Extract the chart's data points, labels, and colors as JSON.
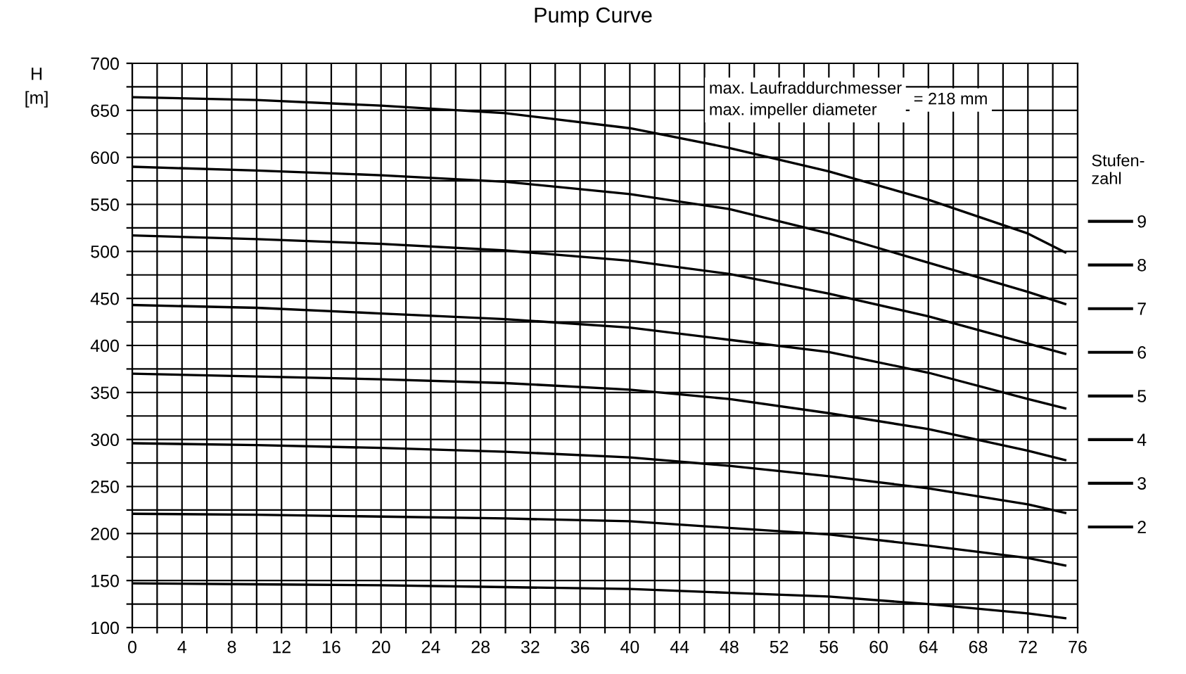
{
  "chart_data": {
    "type": "line",
    "title": "Pump Curve",
    "ylabel": "H\n[m]",
    "legend_title": "Stufen-\nzahl",
    "annotations": [
      "max. Laufraddurchmesser\nmax. impeller diameter",
      "= 218 mm"
    ],
    "x": [
      0,
      10,
      20,
      30,
      40,
      48,
      56,
      64,
      72,
      75
    ],
    "series": [
      {
        "name": "9",
        "color": "#000000",
        "values": [
          664,
          661,
          655,
          647,
          631,
          610,
          585,
          555,
          519,
          499
        ]
      },
      {
        "name": "8",
        "color": "#000000",
        "values": [
          590,
          586,
          581,
          574,
          561,
          545,
          519,
          488,
          457,
          444
        ]
      },
      {
        "name": "7",
        "color": "#000000",
        "values": [
          517,
          513,
          508,
          501,
          490,
          476,
          455,
          431,
          402,
          391
        ]
      },
      {
        "name": "6",
        "color": "#000000",
        "values": [
          443,
          440,
          434,
          428,
          419,
          406,
          393,
          371,
          343,
          333
        ]
      },
      {
        "name": "5",
        "color": "#000000",
        "values": [
          370,
          367,
          364,
          360,
          353,
          343,
          328,
          311,
          288,
          278
        ]
      },
      {
        "name": "4",
        "color": "#000000",
        "values": [
          296,
          294,
          291,
          287,
          281,
          272,
          261,
          248,
          231,
          222
        ]
      },
      {
        "name": "3",
        "color": "#000000",
        "values": [
          221,
          220,
          218,
          216,
          213,
          206,
          199,
          187,
          174,
          166
        ]
      },
      {
        "name": "2",
        "color": "#000000",
        "values": [
          147,
          146,
          145,
          143,
          141,
          137,
          133,
          125,
          115,
          110
        ]
      }
    ],
    "xlim": [
      0,
      76
    ],
    "xticks": [
      0,
      {
        "value": 2,
        "label": null
      },
      4,
      {
        "value": 6,
        "label": null
      },
      8,
      {
        "value": 10,
        "label": null
      },
      12,
      {
        "value": 14,
        "label": null
      },
      16,
      {
        "value": 18,
        "label": null
      },
      20,
      {
        "value": 22,
        "label": null
      },
      24,
      {
        "value": 26,
        "label": null
      },
      28,
      {
        "value": 30,
        "label": null
      },
      32,
      {
        "value": 34,
        "label": null
      },
      36,
      {
        "value": 38,
        "label": null
      },
      40,
      {
        "value": 42,
        "label": null
      },
      44,
      {
        "value": 46,
        "label": null
      },
      48,
      {
        "value": 50,
        "label": null
      },
      52,
      {
        "value": 54,
        "label": null
      },
      56,
      {
        "value": 58,
        "label": null
      },
      60,
      {
        "value": 62,
        "label": null
      },
      64,
      {
        "value": 66,
        "label": null
      },
      68,
      {
        "value": 70,
        "label": null
      },
      72,
      {
        "value": 74,
        "label": null
      },
      76
    ],
    "ylim": [
      100,
      700
    ],
    "yticks": [
      100,
      {
        "value": 125,
        "label": null
      },
      150,
      {
        "value": 175,
        "label": null
      },
      200,
      {
        "value": 225,
        "label": null
      },
      250,
      {
        "value": 275,
        "label": null
      },
      300,
      {
        "value": 325,
        "label": null
      },
      350,
      {
        "value": 375,
        "label": null
      },
      400,
      {
        "value": 425,
        "label": null
      },
      450,
      {
        "value": 475,
        "label": null
      },
      500,
      {
        "value": 525,
        "label": null
      },
      550,
      {
        "value": 575,
        "label": null
      },
      600,
      {
        "value": 625,
        "label": null
      },
      650,
      {
        "value": 675,
        "label": null
      },
      700
    ],
    "grid": true,
    "legend": "right",
    "marker": "none",
    "line_style": "solid"
  }
}
